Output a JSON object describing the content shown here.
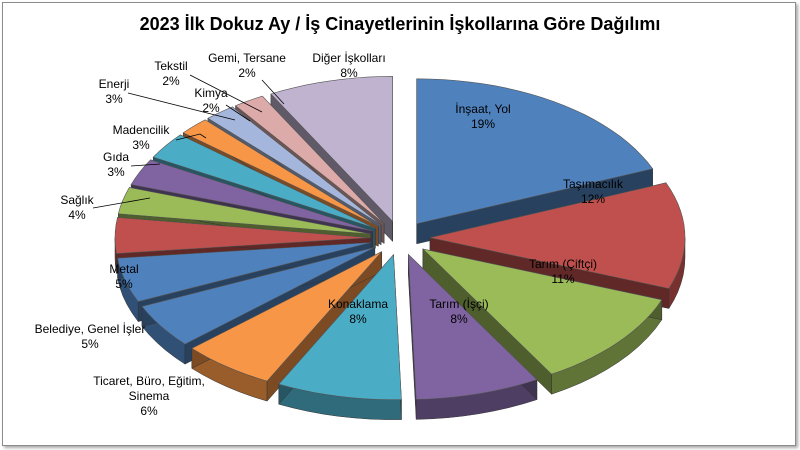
{
  "chart_data": {
    "type": "pie",
    "title": "2023 İlk Dokuz Ay / İş Cinayetlerinin İşkollarına Göre Dağılımı",
    "slices": [
      {
        "name": "İnşaat, Yol",
        "label": "19%",
        "value": 19,
        "color": "#4f81bd"
      },
      {
        "name": "Taşımacılık",
        "label": "12%",
        "value": 12,
        "color": "#c0504d"
      },
      {
        "name": "Tarım (Çiftçi)",
        "label": "11%",
        "value": 11,
        "color": "#9bbb59"
      },
      {
        "name": "Tarım (İşçi)",
        "label": "8%",
        "value": 8,
        "color": "#8064a2"
      },
      {
        "name": "Konaklama",
        "label": "8%",
        "value": 8,
        "color": "#4bacc6"
      },
      {
        "name": "Ticaret, Büro, Eğitim, Sinema",
        "label": "6%",
        "value": 6,
        "color": "#f79646"
      },
      {
        "name": "Belediye, Genel İşler",
        "label": "5%",
        "value": 5,
        "color": "#4f81bd"
      },
      {
        "name": "Metal",
        "label": "5%",
        "value": 5,
        "color": "#4f81bd"
      },
      {
        "name": "Sağlık",
        "label": "4%",
        "value": 4,
        "color": "#c0504d"
      },
      {
        "name": "Gıda",
        "label": "3%",
        "value": 3,
        "color": "#9bbb59"
      },
      {
        "name": "Madencilik",
        "label": "3%",
        "value": 3,
        "color": "#8064a2"
      },
      {
        "name": "Enerji",
        "label": "3%",
        "value": 3,
        "color": "#4bacc6"
      },
      {
        "name": "Kimya",
        "label": "2%",
        "value": 2,
        "color": "#f79646"
      },
      {
        "name": "Tekstil",
        "label": "2%",
        "value": 2,
        "color": "#a5b6dc"
      },
      {
        "name": "Gemi, Tersane",
        "label": "2%",
        "value": 2,
        "color": "#dcaaa9"
      },
      {
        "name": "Diğer İşkolları",
        "label": "8%",
        "value": 8,
        "color": "#bfb3d0"
      }
    ]
  }
}
